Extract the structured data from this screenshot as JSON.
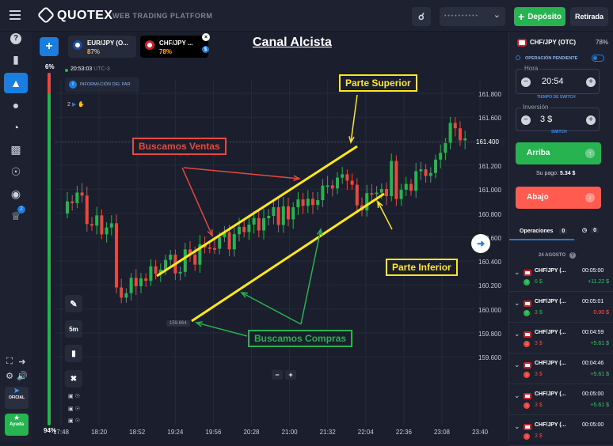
{
  "header": {
    "logo": "QUOTEX",
    "subtitle": "WEB TRADING PLATFORM",
    "deposit_label": "Depósito",
    "withdraw_label": "Retirada",
    "account_masked": "• • • • • • • • • •"
  },
  "sidebar": {
    "help_label": "Ayuda",
    "official_label": "OFICIAL",
    "badge_count": "2"
  },
  "tabs": [
    {
      "name": "EUR/JPY (O...",
      "pct": "87%"
    },
    {
      "name": "CHF/JPY ...",
      "pct": "78%"
    }
  ],
  "chart": {
    "left_pct_top": "6%",
    "left_pct_bottom": "94%",
    "time": "20:53:03",
    "tz": "UTC-3",
    "info": "INFORMACIÓN DEL PAR",
    "title": "Canal Alcista",
    "timeframe": "5m",
    "small_count": "2",
    "price_marker": "159.864",
    "zoom_minus": "−",
    "zoom_plus": "+",
    "annotations": {
      "upper": "Parte Superior",
      "lower": "Parte Inferior",
      "sell": "Buscamos Ventas",
      "buy": "Buscamos Compras"
    }
  },
  "chart_data": {
    "type": "candlestick",
    "y_ticks": [
      "161.800",
      "161.600",
      "161.400",
      "161.200",
      "161.000",
      "160.800",
      "160.600",
      "160.400",
      "160.200",
      "160.000",
      "159.800",
      "159.600"
    ],
    "x_ticks": [
      "17:48",
      "18:20",
      "18:52",
      "19:24",
      "19:56",
      "20:28",
      "21:00",
      "21:32",
      "22:04",
      "22:36",
      "23:08",
      "23:40"
    ],
    "current_price": "161.400"
  },
  "panel": {
    "pair": "CHF/JPY (OTC)",
    "pair_pct": "78%",
    "pending": "OPERACIÓN PENDIENTE",
    "hora_label": "Hora",
    "hora_value": "20:54",
    "switch_time": "TIEMPO DE SWITCH",
    "inv_label": "Inversión",
    "inv_value": "3 $",
    "switch": "SWITCH",
    "buy_label": "Arriba",
    "payout_label": "Su pago:",
    "payout_value": "5.34 $",
    "sell_label": "Abajo",
    "ops_tab": "Operaciones",
    "ops_count": "0",
    "clock_count": "0",
    "date": "24 AGOSTO",
    "operations": [
      {
        "pair": "CHF/JPY (...",
        "time": "00:05:00",
        "amount": "6 $",
        "result": "+11.22 $",
        "dir": "up",
        "color": "#33c46a"
      },
      {
        "pair": "CHF/JPY (...",
        "time": "00:05:01",
        "amount": "3 $",
        "result": "0.00 $",
        "dir": "up",
        "color": "#ff5b4f"
      },
      {
        "pair": "CHF/JPY (...",
        "time": "00:04:59",
        "amount": "3 $",
        "result": "+5.61 $",
        "dir": "down",
        "color": "#33c46a"
      },
      {
        "pair": "CHF/JPY (...",
        "time": "00:04:46",
        "amount": "3 $",
        "result": "+5.61 $",
        "dir": "down",
        "color": "#33c46a"
      },
      {
        "pair": "CHF/JPY (...",
        "time": "00:05:00",
        "amount": "3 $",
        "result": "+5.61 $",
        "dir": "down",
        "color": "#33c46a"
      },
      {
        "pair": "CHF/JPY (...",
        "time": "00:05:00",
        "amount": "3 $",
        "result": "",
        "dir": "down",
        "color": "#33c46a"
      }
    ]
  },
  "colors": {
    "green": "#27b34f",
    "red": "#e5493f",
    "yellow": "#ffe81a",
    "accent": "#1a7de0"
  }
}
